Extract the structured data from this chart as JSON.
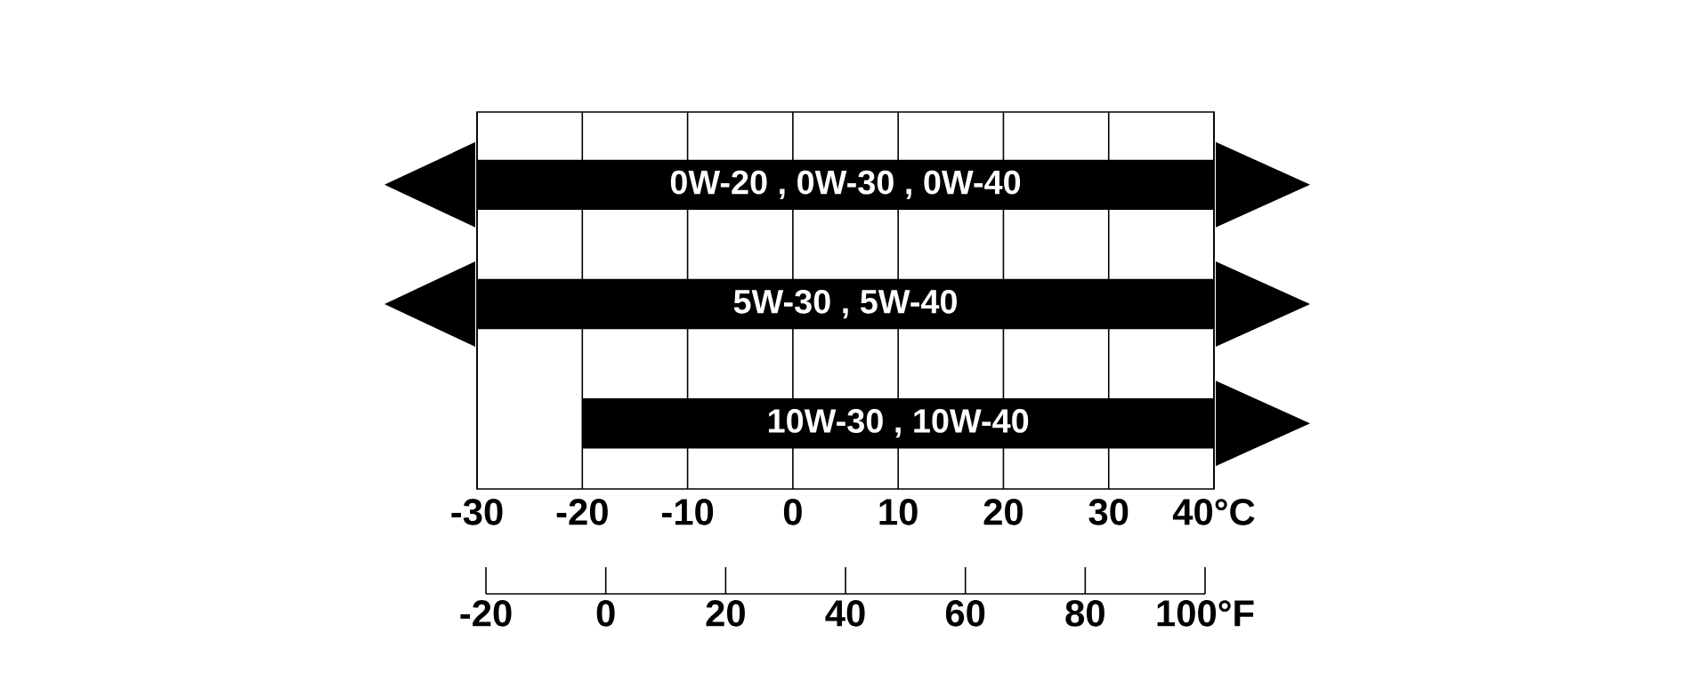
{
  "chart_data": {
    "type": "bar",
    "orientation": "horizontal",
    "categories": [
      "0W-20 , 0W-30 , 0W-40",
      "5W-30 , 5W-40",
      "10W-30 , 10W-40"
    ],
    "base": [
      -30,
      -30,
      -20
    ],
    "values": [
      70,
      70,
      60
    ],
    "color": "#000000",
    "xlim": [
      -30,
      40
    ],
    "xticks": [
      -30,
      -20,
      -10,
      0,
      10,
      20,
      30,
      {
        "value": 40,
        "label": "40°C"
      }
    ],
    "x2lim": [
      -20,
      100
    ],
    "x2ticks": [
      -20,
      0,
      20,
      40,
      60,
      80,
      {
        "value": 100,
        "label": "100°F"
      }
    ],
    "grid": "x"
  }
}
